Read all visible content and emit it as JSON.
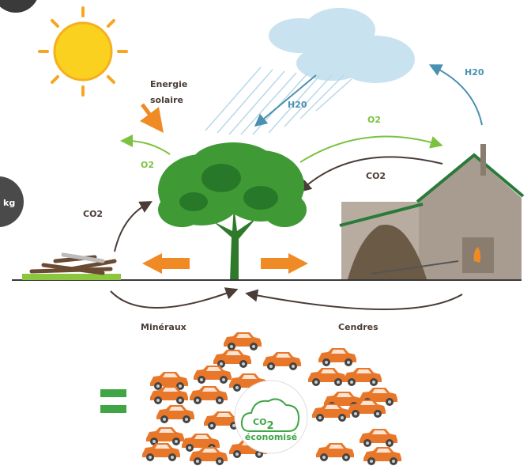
{
  "labels": {
    "energy_line1": "Energie",
    "energy_line2": "solaire",
    "h2o_rain": "H20",
    "h2o_evaporation": "H20",
    "o2_left": "O2",
    "o2_top": "O2",
    "co2_house": "CO2",
    "co2_wood": "CO2",
    "minerals": "Minéraux",
    "ashes": "Cendres",
    "badge_main": "CO",
    "badge_sub": "2",
    "badge_caption": "économisé",
    "side_badge": "kg"
  }
}
